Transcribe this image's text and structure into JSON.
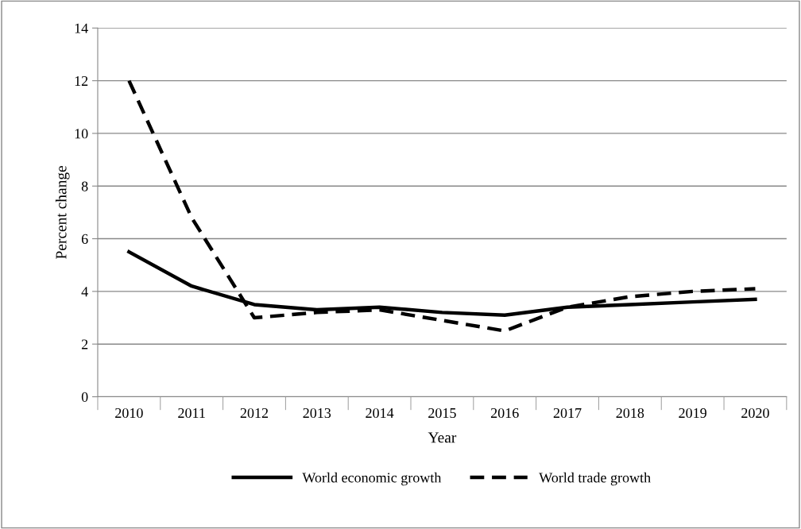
{
  "chart_data": {
    "type": "line",
    "xlabel": "Year",
    "ylabel": "Percent change",
    "categories": [
      "2010",
      "2011",
      "2012",
      "2013",
      "2014",
      "2015",
      "2016",
      "2017",
      "2018",
      "2019",
      "2020"
    ],
    "series": [
      {
        "name": "World economic growth",
        "color": "#000000",
        "line_style": "solid",
        "values": [
          5.5,
          4.2,
          3.5,
          3.3,
          3.4,
          3.2,
          3.1,
          3.4,
          3.5,
          3.6,
          3.7
        ]
      },
      {
        "name": "World trade growth",
        "color": "#000000",
        "line_style": "dashed",
        "values": [
          12.0,
          6.8,
          3.0,
          3.2,
          3.3,
          2.9,
          2.5,
          3.4,
          3.8,
          4.0,
          4.1
        ]
      }
    ],
    "ylim": [
      0,
      14
    ],
    "yticks": [
      0,
      2,
      4,
      6,
      8,
      10,
      12,
      14
    ],
    "grid": "y",
    "legend": "bottom",
    "marker": "none"
  }
}
